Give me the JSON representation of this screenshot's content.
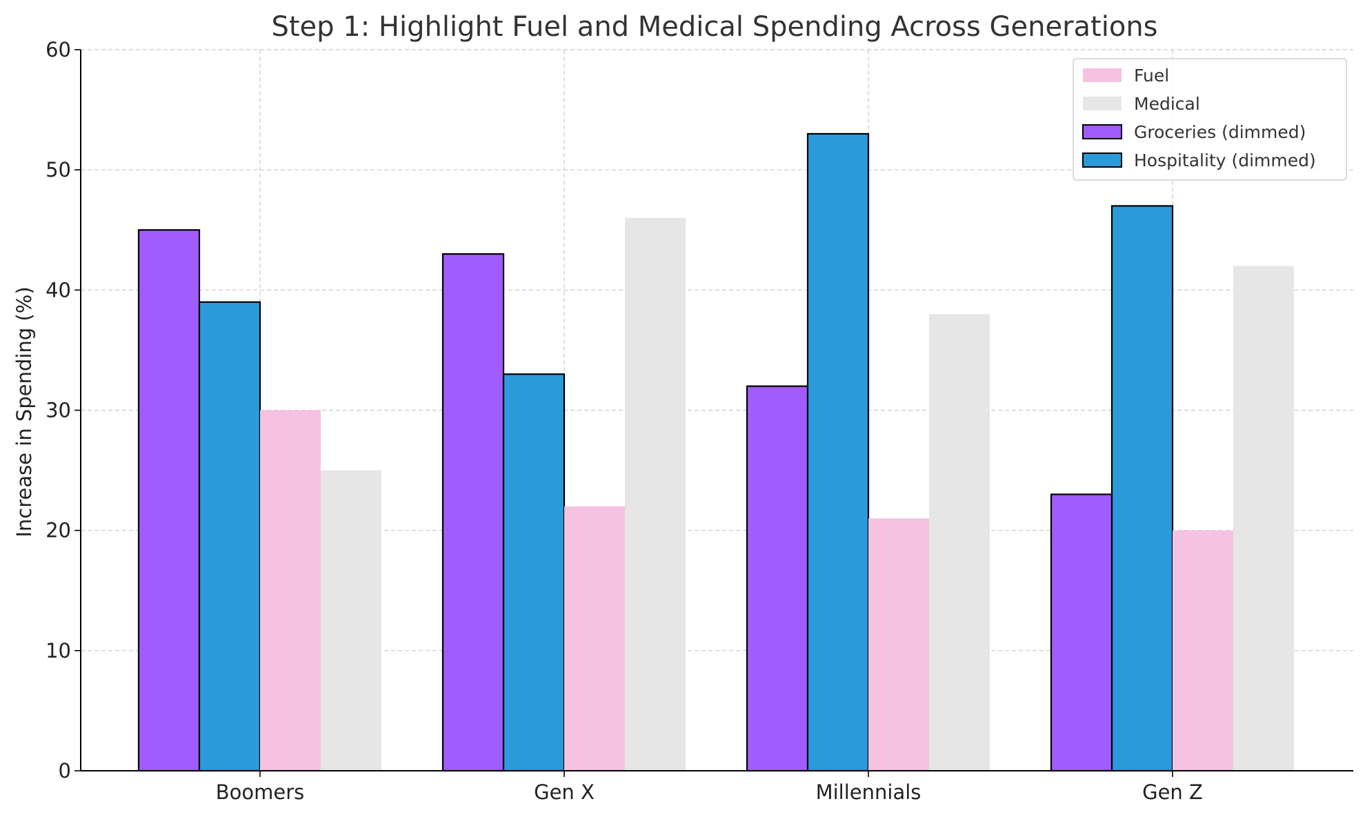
{
  "chart_data": {
    "type": "bar",
    "title": "Step 1: Highlight Fuel and Medical Spending Across Generations",
    "xlabel": "",
    "ylabel": "Increase in Spending (%)",
    "categories": [
      "Boomers",
      "Gen X",
      "Millennials",
      "Gen Z"
    ],
    "ylim": [
      0,
      60
    ],
    "yticks": [
      0,
      10,
      20,
      30,
      40,
      50,
      60
    ],
    "grid": true,
    "legend_position": "top-right",
    "series": [
      {
        "name": "Groceries (dimmed)",
        "values": [
          45,
          43,
          32,
          23
        ],
        "color": "#a05cff",
        "outlined": true
      },
      {
        "name": "Hospitality (dimmed)",
        "values": [
          39,
          33,
          53,
          47
        ],
        "color": "#2b9ad9",
        "outlined": true
      },
      {
        "name": "Fuel",
        "values": [
          30,
          22,
          21,
          20
        ],
        "color": "#f5c2e2",
        "outlined": false
      },
      {
        "name": "Medical",
        "values": [
          25,
          46,
          38,
          42
        ],
        "color": "#e6e6e6",
        "outlined": false
      }
    ],
    "legend_order": [
      "Fuel",
      "Medical",
      "Groceries (dimmed)",
      "Hospitality (dimmed)"
    ]
  }
}
